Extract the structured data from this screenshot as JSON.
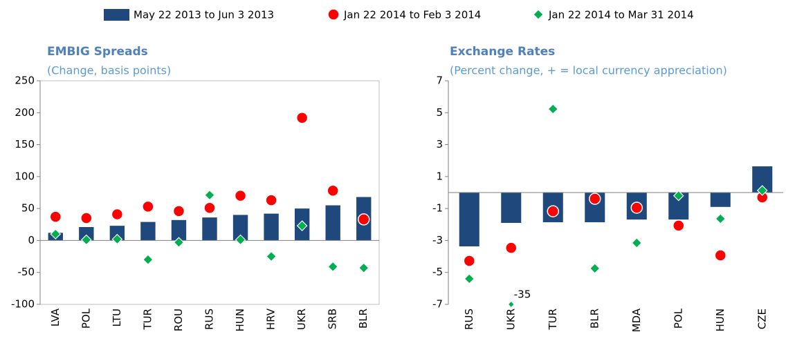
{
  "chart_data": [
    {
      "type": "bar",
      "title": "EMBIG Spreads",
      "subtitle": "(Change, basis points)",
      "categories": [
        "LVA",
        "POL",
        "LTU",
        "TUR",
        "ROU",
        "RUS",
        "HUN",
        "HRV",
        "UKR",
        "SRB",
        "BLR"
      ],
      "ylim": [
        -100,
        250
      ],
      "yticks": [
        -100,
        -50,
        0,
        50,
        100,
        150,
        200,
        250
      ],
      "frame": true,
      "series": [
        {
          "name": "May 22 2013 to Jun 3 2013",
          "color": "#1f497d",
          "marker": "bar",
          "values": [
            12,
            21,
            23,
            29,
            32,
            36,
            40,
            42,
            50,
            55,
            68
          ]
        },
        {
          "name": "Jan 22 2014 to Feb 3 2014",
          "color": "#ff0000",
          "marker": "circle",
          "values": [
            37,
            35,
            41,
            53,
            46,
            51,
            70,
            63,
            192,
            78,
            33
          ]
        },
        {
          "name": "Jan 22 2014 to Mar 31 2014",
          "color": "#00b050",
          "marker": "diamond",
          "values": [
            10,
            1,
            2,
            -30,
            -3,
            71,
            1,
            -25,
            23,
            -41,
            -43
          ]
        }
      ]
    },
    {
      "type": "bar",
      "title": "Exchange Rates",
      "subtitle": "(Percent change, + = local currency appreciation)",
      "categories": [
        "RUS",
        "UKR",
        "TUR",
        "BLR",
        "MDA",
        "POL",
        "HUN",
        "CZE"
      ],
      "ylim": [
        -7,
        7
      ],
      "yticks": [
        -7,
        -5,
        -3,
        -1,
        1,
        3,
        5,
        7
      ],
      "frame": false,
      "series": [
        {
          "name": "May 22 2013 to Jun 3 2013",
          "color": "#1f497d",
          "marker": "bar",
          "values": [
            -3.37,
            -1.9,
            -1.86,
            -1.86,
            -1.69,
            -1.69,
            -0.9,
            1.64
          ]
        },
        {
          "name": "Jan 22 2014 to Feb 3 2014",
          "color": "#ff0000",
          "marker": "circle",
          "values": [
            -4.28,
            -3.46,
            -1.17,
            -0.39,
            -0.95,
            -2.07,
            -3.93,
            -0.3
          ]
        },
        {
          "name": "Jan 22 2014 to Mar 31 2014",
          "color": "#00b050",
          "marker": "diamond",
          "values": [
            -5.4,
            -35,
            5.23,
            -4.75,
            -3.15,
            -0.2,
            -1.64,
            0.13
          ],
          "value_labels": [
            null,
            "-35",
            null,
            null,
            null,
            null,
            null,
            null
          ]
        }
      ]
    }
  ]
}
